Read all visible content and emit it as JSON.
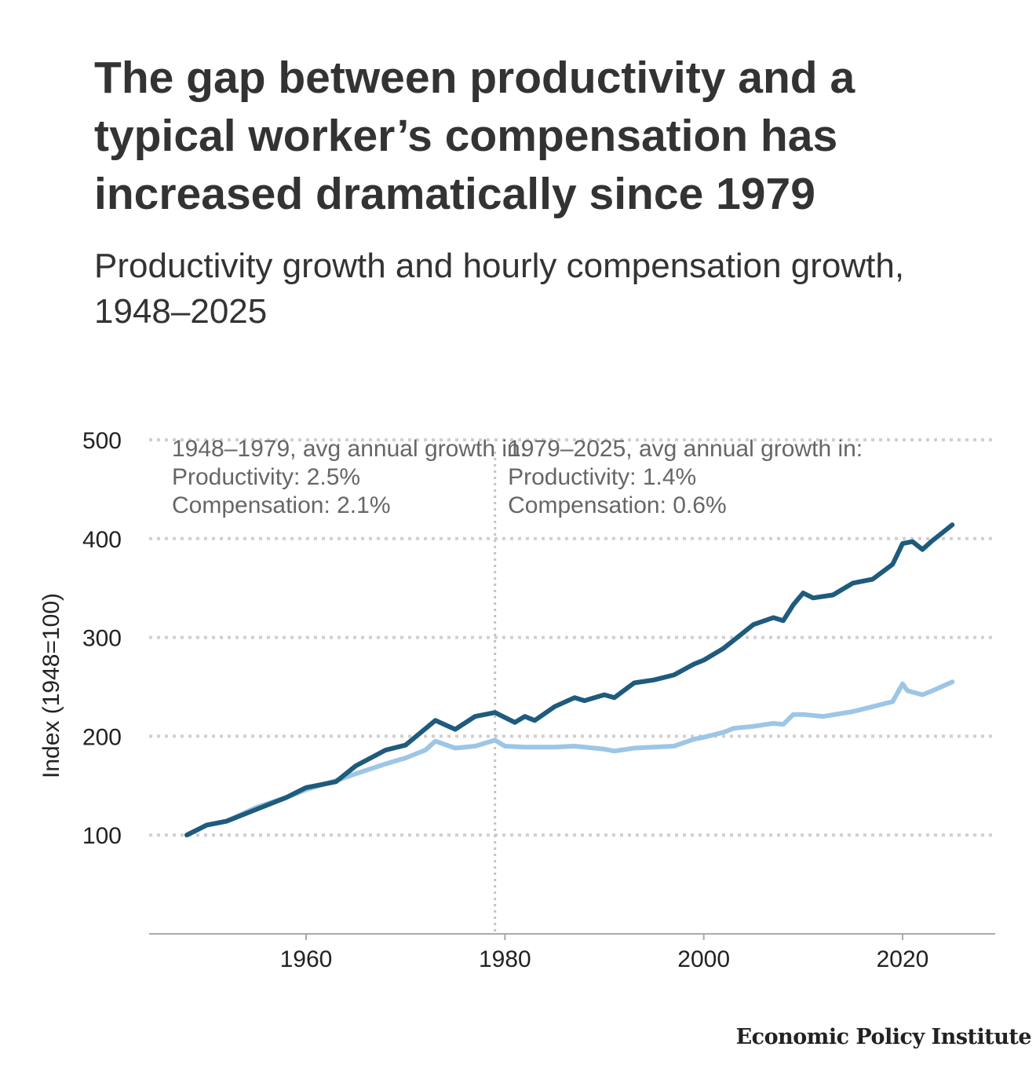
{
  "title": "The gap between productivity and a typical worker’s compensation has increased dramatically since 1979",
  "subtitle": "Productivity growth and hourly compensation growth, 1948–2025",
  "source_logo": "Economic Policy Institute",
  "chart_data": {
    "type": "line",
    "ylabel": "Index (1948=100)",
    "xlabel": "",
    "xlim": [
      1945,
      2029
    ],
    "ylim": [
      0,
      500
    ],
    "xticks": [
      1960,
      1980,
      2000,
      2020
    ],
    "yticks": [
      100,
      200,
      300,
      400,
      500
    ],
    "grid": "horizontal dotted",
    "reference_line_x": 1979,
    "annotations": [
      {
        "lines": [
          "1948–1979, avg annual growth in:",
          "Productivity: 2.5%",
          "Compensation: 2.1%"
        ],
        "x": 1946.5
      },
      {
        "lines": [
          "1979–2025, avg annual growth in:",
          "Productivity: 1.4%",
          "Compensation: 0.6%"
        ],
        "x": 1980.3
      }
    ],
    "series": [
      {
        "name": "Productivity",
        "color": "#1e5b7c",
        "x": [
          1948,
          1950,
          1952,
          1955,
          1958,
          1960,
          1963,
          1965,
          1968,
          1970,
          1973,
          1975,
          1977,
          1979,
          1981,
          1982,
          1983,
          1985,
          1987,
          1988,
          1990,
          1991,
          1993,
          1995,
          1997,
          1999,
          2000,
          2002,
          2003,
          2005,
          2007,
          2008,
          2009,
          2010,
          2011,
          2013,
          2015,
          2017,
          2019,
          2020,
          2021,
          2022,
          2023,
          2024,
          2025
        ],
        "values": [
          100,
          110,
          114,
          126,
          138,
          148,
          154,
          170,
          186,
          191,
          216,
          207,
          220,
          224,
          214,
          220,
          216,
          230,
          239,
          236,
          242,
          239,
          254,
          257,
          262,
          273,
          277,
          289,
          297,
          313,
          320,
          317,
          333,
          345,
          340,
          343,
          355,
          359,
          374,
          395,
          397,
          389,
          398,
          406,
          414
        ]
      },
      {
        "name": "Compensation",
        "color": "#9dc6e6",
        "x": [
          1948,
          1950,
          1952,
          1955,
          1958,
          1960,
          1963,
          1965,
          1968,
          1970,
          1972,
          1973,
          1975,
          1977,
          1979,
          1980,
          1982,
          1985,
          1987,
          1990,
          1991,
          1993,
          1995,
          1997,
          1999,
          2000,
          2002,
          2003,
          2005,
          2007,
          2008,
          2009,
          2010,
          2012,
          2015,
          2017,
          2019,
          2020,
          2020.5,
          2022,
          2023,
          2025
        ],
        "values": [
          100,
          110,
          114,
          128,
          138,
          146,
          155,
          162,
          172,
          178,
          186,
          195,
          188,
          190,
          196,
          190,
          189,
          189,
          190,
          187,
          185,
          188,
          189,
          190,
          197,
          199,
          204,
          208,
          210,
          213,
          212,
          222,
          222,
          220,
          225,
          230,
          235,
          253,
          246,
          242,
          246,
          255
        ]
      }
    ]
  }
}
